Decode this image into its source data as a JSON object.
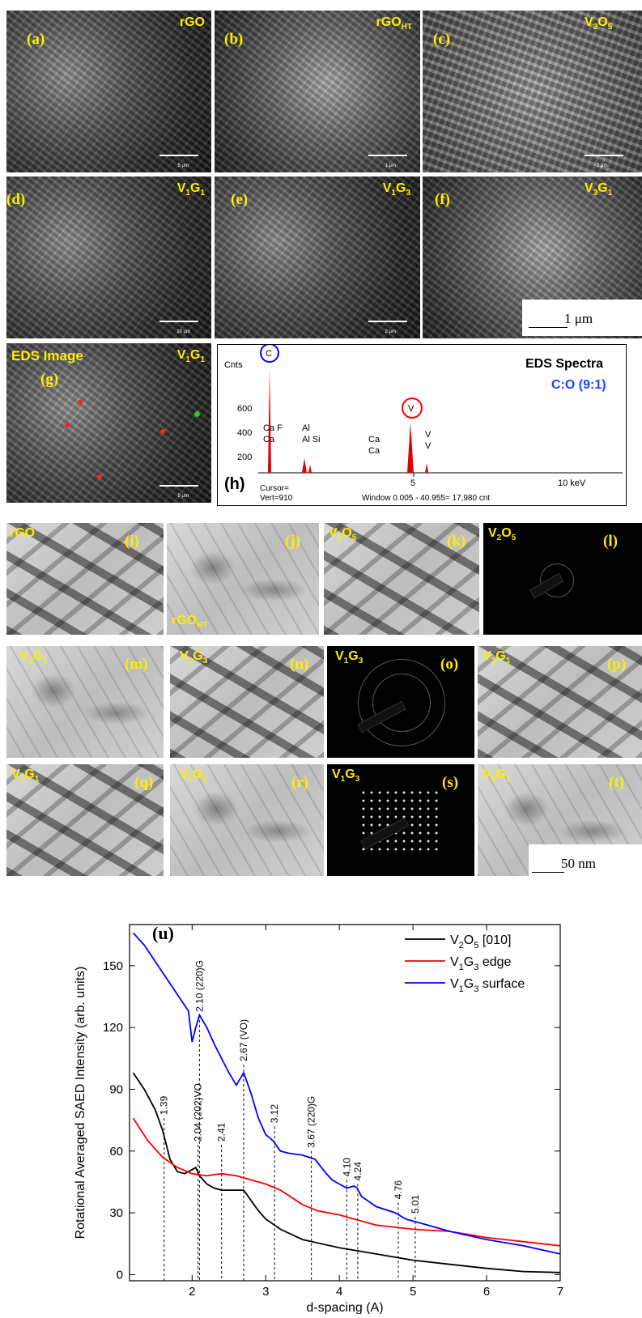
{
  "sem_panels": [
    {
      "tag": "(a)",
      "material": "rGO",
      "scalebar": "5 μm"
    },
    {
      "tag": "(b)",
      "material_base": "rGO",
      "material_sub": "HT",
      "scalebar": "1 μm"
    },
    {
      "tag": "(c)",
      "material_base": "V",
      "material_sub1": "2",
      "material_mid": "O",
      "material_sub2": "5",
      "scalebar": "2 μm"
    },
    {
      "tag": "(d)",
      "material_base": "V",
      "material_sub1": "1",
      "material_mid": "G",
      "material_sub2": "1",
      "scalebar": "10 μm"
    },
    {
      "tag": "(e)",
      "material_base": "V",
      "material_sub1": "1",
      "material_mid": "G",
      "material_sub2": "3",
      "scalebar": "2 μm"
    },
    {
      "tag": "(f)",
      "material_base": "V",
      "material_sub1": "3",
      "material_mid": "G",
      "material_sub2": "1"
    }
  ],
  "sem_scale_label": "1 μm",
  "eds_image": {
    "title": "EDS Image",
    "tag": "(g)",
    "material_base": "V",
    "material_sub1": "1",
    "material_mid": "G",
    "material_sub2": "1",
    "scalebar": "5 μm"
  },
  "eds_spectra": {
    "tag": "(h)",
    "title": "EDS Spectra",
    "ratio": "C:O (9:1)",
    "y_label": "Cnts",
    "y_ticks": [
      "600",
      "400",
      "200"
    ],
    "x_ticks": [
      "5",
      "10 keV"
    ],
    "peaks": [
      "C",
      "V",
      "Ca F",
      "Ca",
      "Al",
      "Al Si",
      "Ca",
      "Ca",
      "V",
      "V"
    ],
    "footer_cursor": "Cursor=",
    "footer_vert": "Vert=910",
    "footer_window": "Window 0.005 - 40.955=   17,980 cnt"
  },
  "tem_panels": [
    {
      "tag": "(i)",
      "material": "rGO"
    },
    {
      "tag": "(j)",
      "material_base": "rGO",
      "material_sub": "HT"
    },
    {
      "tag": "(k)",
      "material_base": "V",
      "material_sub1": "2",
      "material_mid": "O",
      "material_sub2": "5"
    },
    {
      "tag": "(l)",
      "material_base": "V",
      "material_sub1": "2",
      "material_mid": "O",
      "material_sub2": "5"
    },
    {
      "tag": "(m)",
      "material_base": "V",
      "material_sub1": "1",
      "material_mid": "G",
      "material_sub2": "1"
    },
    {
      "tag": "(n)",
      "material_base": "V",
      "material_sub1": "1",
      "material_mid": "G",
      "material_sub2": "3"
    },
    {
      "tag": "(o)",
      "material_base": "V",
      "material_sub1": "1",
      "material_mid": "G",
      "material_sub2": "3"
    },
    {
      "tag": "(p)",
      "material_base": "V",
      "material_sub1": "3",
      "material_mid": "G",
      "material_sub2": "1"
    },
    {
      "tag": "(q)",
      "material_base": "V",
      "material_sub1": "1",
      "material_mid": "G",
      "material_sub2": "1"
    },
    {
      "tag": "(r)",
      "material_base": "V",
      "material_sub1": "1",
      "material_mid": "G",
      "material_sub2": "3"
    },
    {
      "tag": "(s)",
      "material_base": "V",
      "material_sub1": "1",
      "material_mid": "G",
      "material_sub2": "3"
    },
    {
      "tag": "(t)",
      "material_base": "V",
      "material_sub1": "3",
      "material_mid": "G",
      "material_sub2": "1"
    }
  ],
  "tem_scale_label": "50 nm",
  "chart_data": {
    "type": "line",
    "panel_tag": "(u)",
    "xlabel": "d-spacing (A)",
    "ylabel": "Rotational Averaged SAED Intensity (arb. units)",
    "xlim": [
      1.15,
      7
    ],
    "ylim": [
      -3,
      170
    ],
    "x_ticks": [
      2,
      3,
      4,
      5,
      6,
      7
    ],
    "y_ticks": [
      0,
      30,
      60,
      90,
      120,
      150
    ],
    "legend_position": "top-right",
    "series": [
      {
        "name_base": "V",
        "name_sub1": "2",
        "name_mid": "O",
        "name_sub2": "5",
        "name_rest": " [010]",
        "color": "#000000",
        "x": [
          1.2,
          1.35,
          1.5,
          1.6,
          1.7,
          1.8,
          1.9,
          2.0,
          2.05,
          2.1,
          2.2,
          2.3,
          2.4,
          2.5,
          2.6,
          2.7,
          2.8,
          2.9,
          3.0,
          3.2,
          3.5,
          4.0,
          4.5,
          5.0,
          5.5,
          6.0,
          6.5,
          7.0
        ],
        "y": [
          98,
          90,
          80,
          70,
          56,
          50,
          49,
          51,
          52,
          48,
          44,
          42,
          41,
          41,
          41,
          41,
          36,
          31,
          27,
          22,
          17,
          13,
          10,
          7,
          5,
          3,
          1.5,
          1
        ]
      },
      {
        "name_base": "V",
        "name_sub1": "1",
        "name_mid": "G",
        "name_sub2": "3",
        "name_rest": " edge",
        "color": "#ff0000",
        "x": [
          1.2,
          1.4,
          1.6,
          1.8,
          2.0,
          2.2,
          2.4,
          2.6,
          2.8,
          3.0,
          3.2,
          3.5,
          3.7,
          4.0,
          4.2,
          4.5,
          5.0,
          5.5,
          6.0,
          6.5,
          7.0
        ],
        "y": [
          76,
          65,
          57,
          52,
          49,
          48,
          49,
          48,
          46,
          44,
          41,
          34,
          31,
          29,
          27,
          24,
          22,
          21,
          18,
          16,
          14
        ]
      },
      {
        "name_base": "V",
        "name_sub1": "1",
        "name_mid": "G",
        "name_sub2": "3",
        "name_rest": " surface",
        "color": "#0000ff",
        "x": [
          1.2,
          1.35,
          1.5,
          1.65,
          1.8,
          1.95,
          2.0,
          2.05,
          2.1,
          2.2,
          2.3,
          2.4,
          2.5,
          2.6,
          2.7,
          2.8,
          2.9,
          3.0,
          3.1,
          3.2,
          3.3,
          3.5,
          3.67,
          3.8,
          3.9,
          4.0,
          4.1,
          4.2,
          4.24,
          4.3,
          4.5,
          4.76,
          4.9,
          5.0,
          5.2,
          5.5,
          6.0,
          6.5,
          7.0
        ],
        "y": [
          166,
          160,
          152,
          144,
          136,
          128,
          113,
          120,
          126,
          120,
          112,
          105,
          98,
          92,
          98,
          88,
          76,
          68,
          65,
          60,
          59,
          58,
          56,
          50,
          46,
          44,
          42,
          43,
          42,
          38,
          33,
          30,
          27,
          26,
          24,
          21,
          17,
          14,
          10
        ]
      }
    ],
    "annotations": [
      {
        "x": 1.62,
        "y": 76,
        "label": "1.39"
      },
      {
        "x": 2.08,
        "y": 63,
        "label": "2.04 (202)VO"
      },
      {
        "x": 2.4,
        "y": 63,
        "label": "2.41"
      },
      {
        "x": 2.1,
        "y": 126,
        "label": "2.10 (220)G"
      },
      {
        "x": 2.7,
        "y": 102,
        "label": "2.67 (VO)"
      },
      {
        "x": 3.12,
        "y": 72,
        "label": "3.12"
      },
      {
        "x": 3.62,
        "y": 60,
        "label": "3.67 (220)G"
      },
      {
        "x": 4.1,
        "y": 46,
        "label": "4.10"
      },
      {
        "x": 4.25,
        "y": 44,
        "label": "4.24"
      },
      {
        "x": 4.8,
        "y": 35,
        "label": "4.76"
      },
      {
        "x": 5.03,
        "y": 28,
        "label": "5.01"
      }
    ]
  }
}
